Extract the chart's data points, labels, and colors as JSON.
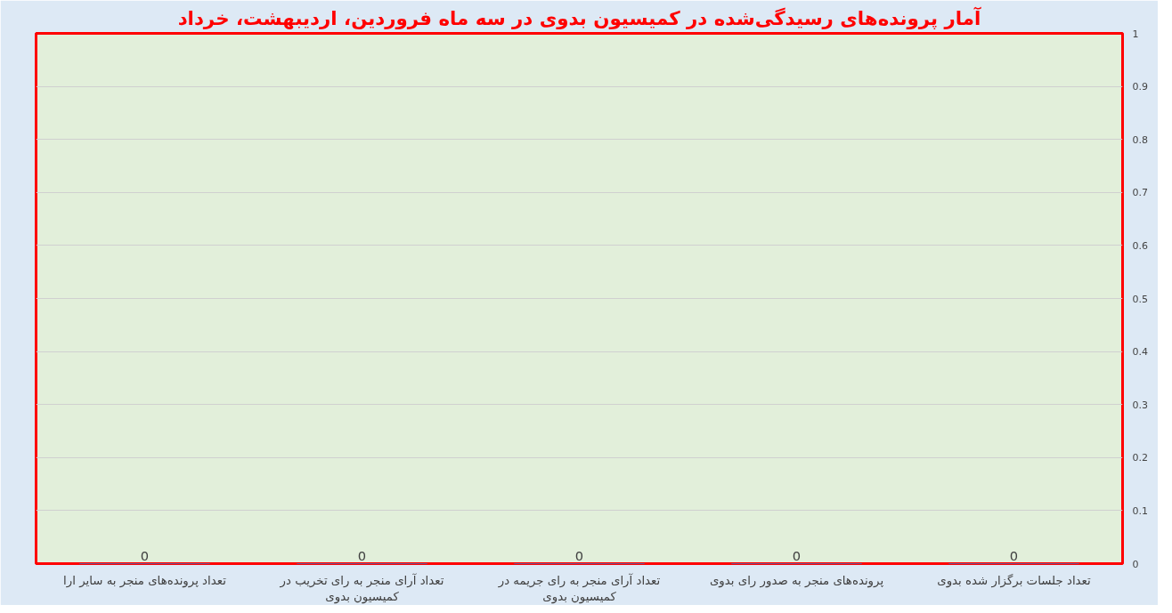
{
  "chart_data": {
    "type": "bar",
    "title": "آمار پرونده‌های رسیدگی‌شده در کمیسیون بدوی در سه ماه فروردین، اردیبهشت، خرداد",
    "categories": [
      "تعداد پرونده‌های منجر به سایر ارا",
      "تعداد آرای منجر به رای تخریب در کمیسیون بدوی",
      "تعداد آرای منجر به رای جریمه در کمیسیون بدوی",
      "پرونده‌های منجر به صدور رای بدوی",
      "تعداد جلسات برگزار شده بدوی"
    ],
    "values": [
      0,
      0,
      0,
      0,
      0
    ],
    "color": "#4472c4",
    "data_labels": true,
    "ylim": [
      0,
      1
    ],
    "yticks": [
      0,
      0.1,
      0.2,
      0.3,
      0.4,
      0.5,
      0.6,
      0.7,
      0.8,
      0.9,
      1
    ],
    "grid": "y"
  }
}
